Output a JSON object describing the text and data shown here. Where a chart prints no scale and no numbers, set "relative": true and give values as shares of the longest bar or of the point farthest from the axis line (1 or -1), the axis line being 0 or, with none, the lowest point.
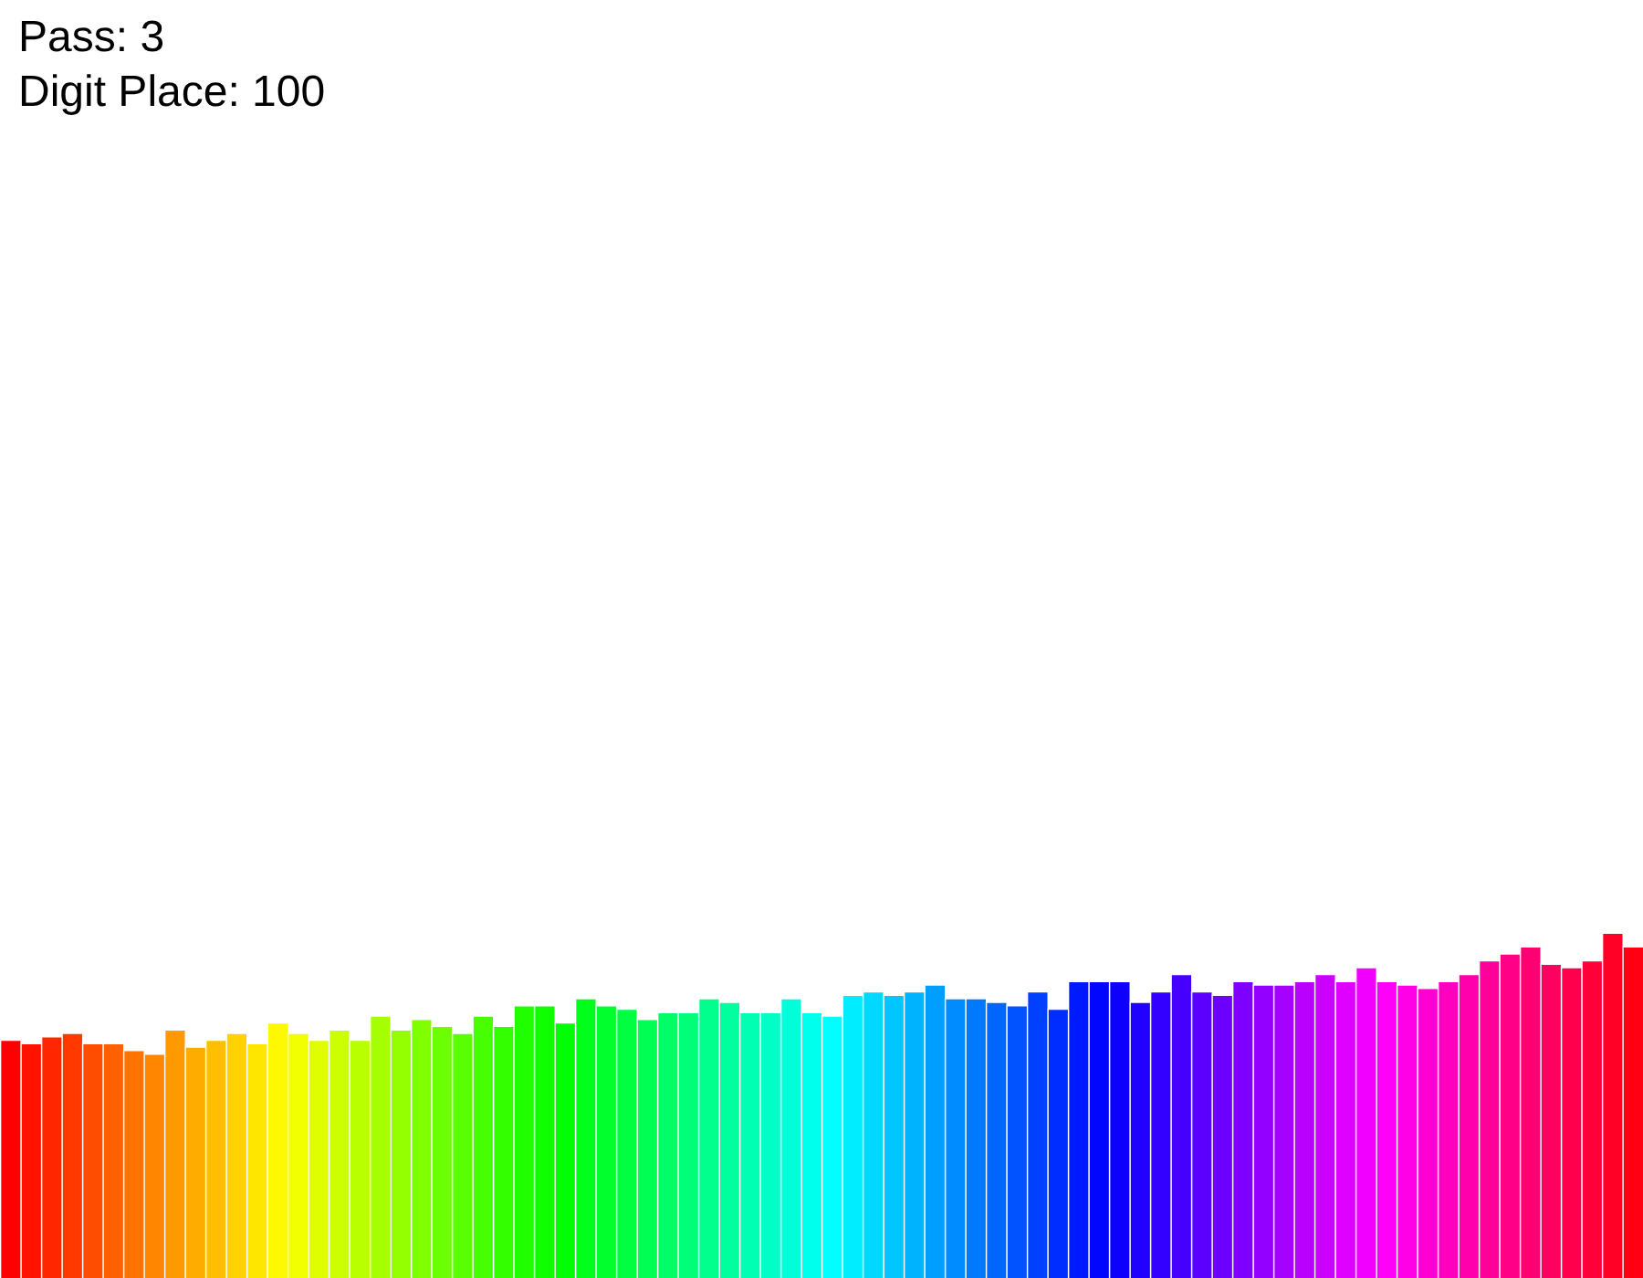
{
  "chart_data": {
    "type": "bar",
    "title": "Pass: 3",
    "subtitle": "Digit Place: 100",
    "relative": true,
    "categories": [
      null,
      null,
      null,
      null,
      null,
      null,
      null,
      null,
      null,
      null,
      null,
      null,
      null,
      null,
      null,
      null,
      null,
      null,
      null,
      null,
      null,
      null,
      null,
      null,
      null,
      null,
      null,
      null,
      null,
      null,
      null,
      null,
      null,
      null,
      null,
      null,
      null,
      null,
      null,
      null,
      null,
      null,
      null,
      null,
      null,
      null,
      null,
      null,
      null,
      null,
      null,
      null,
      null,
      null,
      null,
      null,
      null,
      null,
      null,
      null,
      null,
      null,
      null,
      null,
      null,
      null,
      null,
      null,
      null,
      null,
      null,
      null,
      null,
      null,
      null,
      null,
      null,
      null,
      null,
      null
    ],
    "values": [
      0.69,
      0.68,
      0.7,
      0.71,
      0.68,
      0.68,
      0.66,
      0.65,
      0.72,
      0.67,
      0.69,
      0.71,
      0.68,
      0.74,
      0.71,
      0.69,
      0.72,
      0.69,
      0.76,
      0.72,
      0.75,
      0.73,
      0.71,
      0.76,
      0.73,
      0.79,
      0.79,
      0.74,
      0.81,
      0.79,
      0.78,
      0.75,
      0.77,
      0.77,
      0.81,
      0.8,
      0.77,
      0.77,
      0.81,
      0.77,
      0.76,
      0.82,
      0.83,
      0.82,
      0.83,
      0.85,
      0.81,
      0.81,
      0.8,
      0.79,
      0.83,
      0.78,
      0.86,
      0.86,
      0.86,
      0.8,
      0.83,
      0.88,
      0.83,
      0.82,
      0.86,
      0.85,
      0.85,
      0.86,
      0.88,
      0.86,
      0.9,
      0.86,
      0.85,
      0.84,
      0.86,
      0.88,
      0.92,
      0.94,
      0.96,
      0.91,
      0.9,
      0.92,
      1,
      0.96
    ],
    "colors": [
      "#ff0000",
      "#ff1300",
      "#ff2600",
      "#ff3900",
      "#ff4d00",
      "#ff6000",
      "#ff7300",
      "#ff8600",
      "#ff9900",
      "#ffac00",
      "#ffbf00",
      "#ffd200",
      "#ffe600",
      "#fff900",
      "#f2ff00",
      "#dfff00",
      "#ccff00",
      "#b9ff00",
      "#a6ff00",
      "#93ff00",
      "#80ff00",
      "#6cff00",
      "#59ff00",
      "#46ff00",
      "#33ff00",
      "#20ff00",
      "#0dff00",
      "#00ff06",
      "#00ff1a",
      "#00ff2d",
      "#00ff40",
      "#00ff53",
      "#00ff66",
      "#00ff79",
      "#00ff8c",
      "#00ff9f",
      "#00ffb3",
      "#00ffc6",
      "#00ffd9",
      "#00ffec",
      "#00ffff",
      "#00ecff",
      "#00d9ff",
      "#00c6ff",
      "#00b3ff",
      "#009fff",
      "#008cff",
      "#0079ff",
      "#0066ff",
      "#0053ff",
      "#0040ff",
      "#002dff",
      "#001aff",
      "#0006ff",
      "#0d00ff",
      "#2000ff",
      "#3300ff",
      "#4600ff",
      "#5900ff",
      "#6c00ff",
      "#8000ff",
      "#9300ff",
      "#a600ff",
      "#b900ff",
      "#cc00ff",
      "#df00ff",
      "#f200ff",
      "#ff00f9",
      "#ff00e6",
      "#ff00d2",
      "#ff00bf",
      "#ff00ac",
      "#ff0099",
      "#ff0086",
      "#ff0073",
      "#ff0060",
      "#ff004d",
      "#ff0039",
      "#ff0026",
      "#ff0013"
    ]
  }
}
